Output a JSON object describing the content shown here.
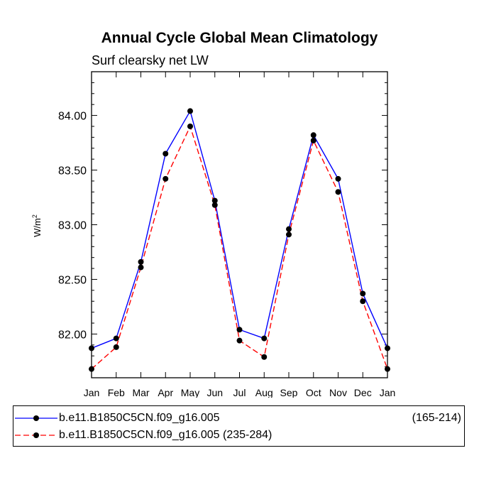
{
  "chart_data": {
    "type": "line",
    "title": "Annual Cycle Global Mean Climatology",
    "subtitle": "Surf clearsky net LW",
    "ylabel": "W/m",
    "ylabel_sup": "2",
    "xlabel": "",
    "categories": [
      "Jan",
      "Feb",
      "Mar",
      "Apr",
      "May",
      "Jun",
      "Jul",
      "Aug",
      "Sep",
      "Oct",
      "Nov",
      "Dec",
      "Jan"
    ],
    "ylim": [
      81.6,
      84.4
    ],
    "yticks": [
      82.0,
      82.5,
      83.0,
      83.5,
      84.0
    ],
    "ytick_labels": [
      "82.00",
      "82.50",
      "83.00",
      "83.50",
      "84.00"
    ],
    "series": [
      {
        "name": "b.e11.B1850C5CN.f09_g16.005",
        "range": "(165-214)",
        "color": "#0000ff",
        "dash": "solid",
        "values": [
          81.87,
          81.96,
          82.66,
          83.65,
          84.04,
          83.22,
          82.04,
          81.96,
          82.96,
          83.82,
          83.42,
          82.37,
          81.87
        ]
      },
      {
        "name": "b.e11.B1850C5CN.f09_g16.005 (235-284)",
        "range": "",
        "color": "#ff0000",
        "dash": "dashed",
        "values": [
          81.68,
          81.88,
          82.61,
          83.42,
          83.9,
          83.18,
          81.94,
          81.79,
          82.91,
          83.77,
          83.3,
          82.3,
          81.68
        ]
      }
    ],
    "legend_position": "bottom"
  }
}
